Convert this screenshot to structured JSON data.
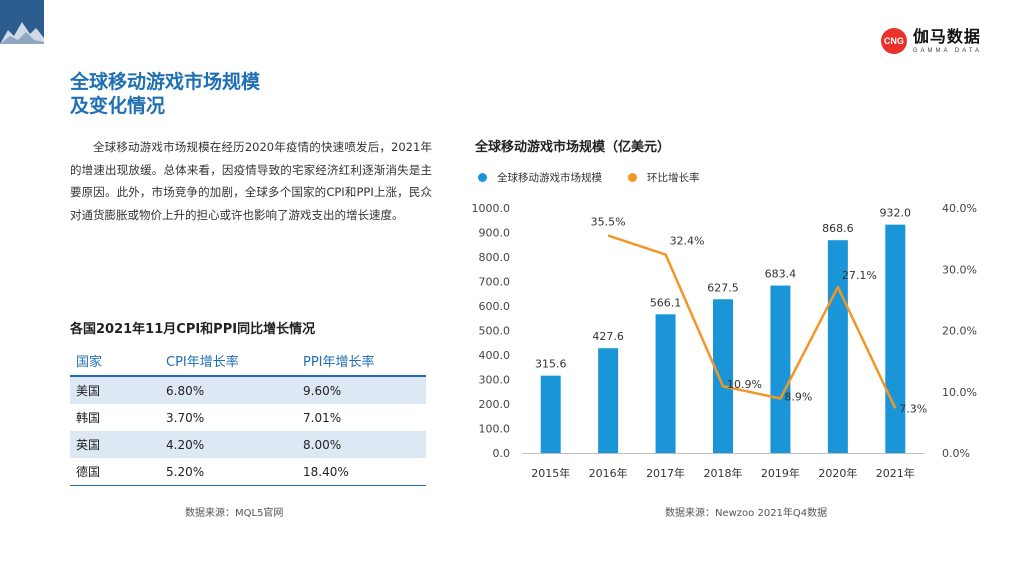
{
  "header": {
    "logo_badge": "CNG",
    "logo_cn": "伽马数据",
    "logo_en": "GAMMA DATA"
  },
  "title": {
    "line1": "全球移动游戏市场规模",
    "line2": "及变化情况"
  },
  "paragraph": "全球移动游戏市场规模在经历2020年疫情的快速喷发后，2021年的增速出现放缓。总体来看，因疫情导致的宅家经济红利逐渐消失是主要原因。此外，市场竞争的加剧，全球多个国家的CPI和PPI上涨，民众对通货膨胀或物价上升的担心或许也影响了游戏支出的增长速度。",
  "table": {
    "title": "各国2021年11月CPI和PPI同比增长情况",
    "headers": [
      "国家",
      "CPI年增长率",
      "PPI年增长率"
    ],
    "rows": [
      [
        "美国",
        "6.80%",
        "9.60%"
      ],
      [
        "韩国",
        "3.70%",
        "7.01%"
      ],
      [
        "英国",
        "4.20%",
        "8.00%"
      ],
      [
        "德国",
        "5.20%",
        "18.40%"
      ]
    ],
    "source": "数据来源：MQL5官网"
  },
  "chart_source": "数据来源：Newzoo 2021年Q4数据",
  "colors": {
    "bar": "#1a96d8",
    "line": "#f29624",
    "title": "#1f6fb3",
    "shade": "#dde8f4"
  },
  "chart_data": {
    "type": "bar",
    "title": "全球移动游戏市场规模（亿美元）",
    "categories": [
      "2015年",
      "2016年",
      "2017年",
      "2018年",
      "2019年",
      "2020年",
      "2021年"
    ],
    "series": [
      {
        "name": "全球移动游戏市场规模",
        "type": "bar",
        "axis": "left",
        "values": [
          315.6,
          427.6,
          566.1,
          627.5,
          683.4,
          868.6,
          932.0
        ],
        "labels": [
          "315.6",
          "427.6",
          "566.1",
          "627.5",
          "683.4",
          "868.6",
          "932.0"
        ]
      },
      {
        "name": "环比增长率",
        "type": "line",
        "axis": "right",
        "values": [
          null,
          35.5,
          32.4,
          10.9,
          8.9,
          27.1,
          7.3
        ],
        "labels": [
          "",
          "35.5%",
          "32.4%",
          "10.9%",
          "8.9%",
          "27.1%",
          "7.3%"
        ]
      }
    ],
    "ylim_left": [
      0,
      1000
    ],
    "yticks_left": [
      "0.0",
      "100.0",
      "200.0",
      "300.0",
      "400.0",
      "500.0",
      "600.0",
      "700.0",
      "800.0",
      "900.0",
      "1000.0"
    ],
    "ylim_right": [
      0,
      40
    ],
    "yticks_right": [
      "0.0%",
      "10.0%",
      "20.0%",
      "30.0%",
      "40.0%"
    ],
    "legend_position": "top",
    "grid": false
  }
}
